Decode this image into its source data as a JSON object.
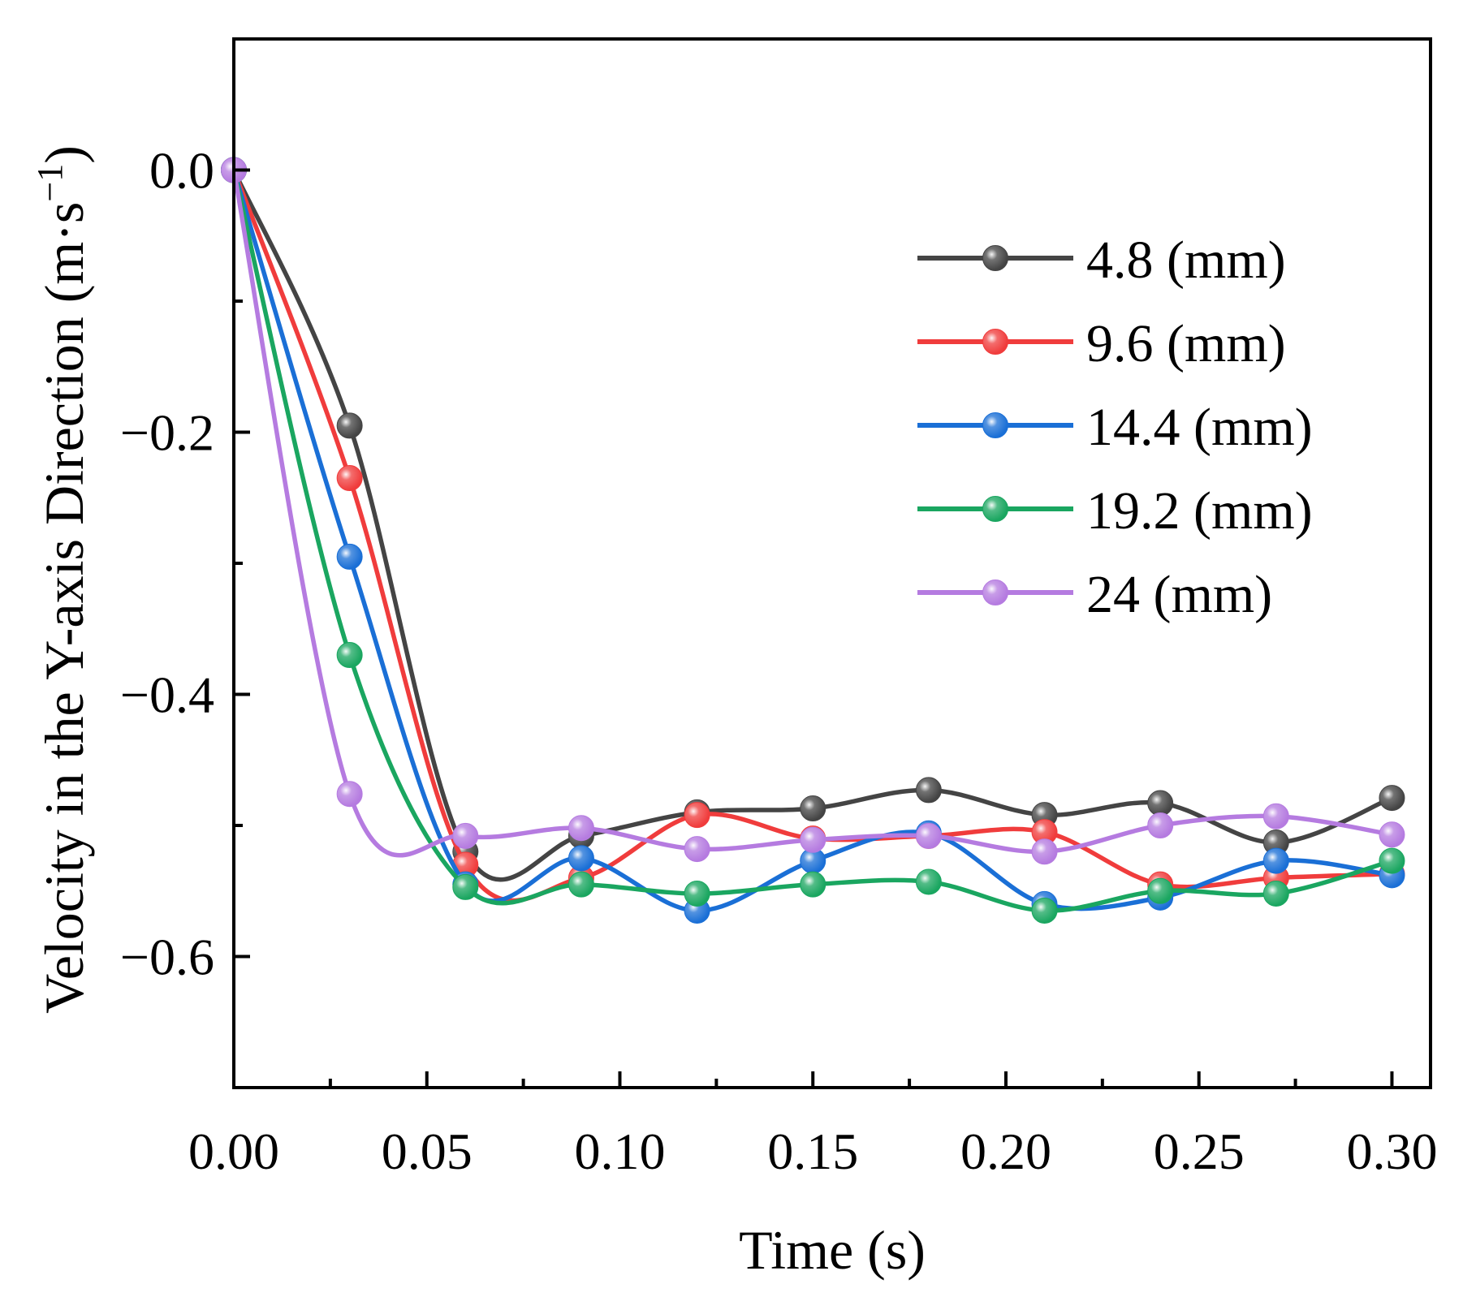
{
  "chart_data": {
    "type": "line",
    "xlabel": "Time (s)",
    "ylabel": "Velocity in the Y-axis Direction (m·s",
    "ylabel_sup": "−1",
    "ylabel_close": ")",
    "xlim": [
      0,
      0.31
    ],
    "ylim": [
      -0.7,
      0.1
    ],
    "xticks": [
      0.0,
      0.05,
      0.1,
      0.15,
      0.2,
      0.25,
      0.3
    ],
    "xtick_labels": [
      "0.00",
      "0.05",
      "0.10",
      "0.15",
      "0.20",
      "0.25",
      "0.30"
    ],
    "yticks": [
      0.0,
      -0.2,
      -0.4,
      -0.6
    ],
    "ytick_labels": [
      "0.0",
      "−0.2",
      "−0.4",
      "−0.6"
    ],
    "x": [
      0.0,
      0.03,
      0.06,
      0.09,
      0.12,
      0.15,
      0.18,
      0.21,
      0.24,
      0.27,
      0.3
    ],
    "legend_position": "top-right",
    "series": [
      {
        "name": "4.8 (mm)",
        "color": "#444444",
        "values": [
          0.0,
          -0.195,
          -0.52,
          -0.508,
          -0.49,
          -0.487,
          -0.473,
          -0.492,
          -0.483,
          -0.513,
          -0.479
        ]
      },
      {
        "name": "9.6 (mm)",
        "color": "#f03c3c",
        "values": [
          0.0,
          -0.235,
          -0.53,
          -0.54,
          -0.492,
          -0.51,
          -0.508,
          -0.505,
          -0.545,
          -0.54,
          -0.537
        ]
      },
      {
        "name": "14.4 (mm)",
        "color": "#1a6fd6",
        "values": [
          0.0,
          -0.295,
          -0.545,
          -0.525,
          -0.565,
          -0.527,
          -0.506,
          -0.56,
          -0.555,
          -0.527,
          -0.538
        ]
      },
      {
        "name": "19.2 (mm)",
        "color": "#1aa660",
        "values": [
          0.0,
          -0.37,
          -0.547,
          -0.545,
          -0.552,
          -0.545,
          -0.543,
          -0.565,
          -0.55,
          -0.552,
          -0.527
        ]
      },
      {
        "name": "24 (mm)",
        "color": "#b57be0",
        "values": [
          0.0,
          -0.476,
          -0.508,
          -0.502,
          -0.518,
          -0.511,
          -0.508,
          -0.52,
          -0.5,
          -0.493,
          -0.507
        ]
      }
    ]
  }
}
